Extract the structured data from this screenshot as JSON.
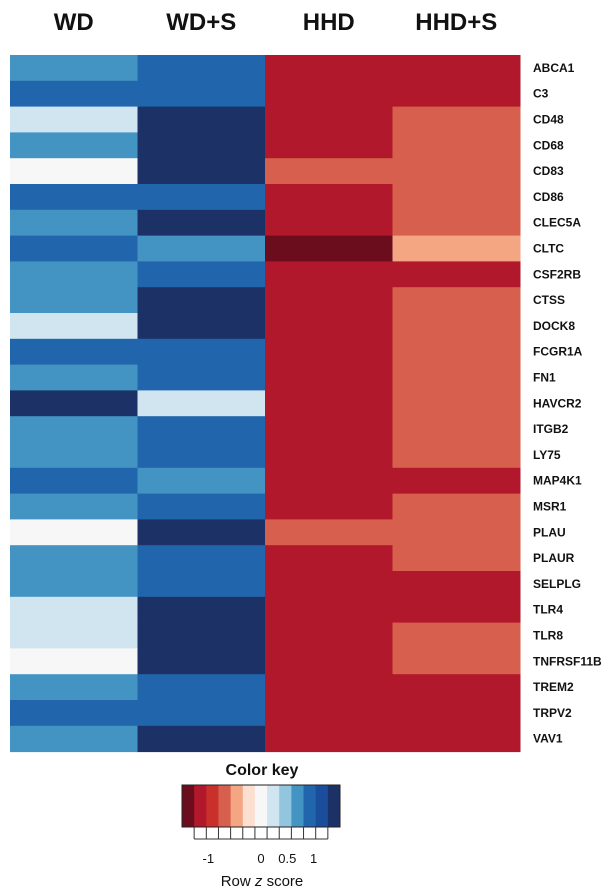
{
  "chart_data": {
    "type": "heatmap",
    "columns": [
      "WD",
      "WD+S",
      "HHD",
      "HHD+S"
    ],
    "rows": [
      "ABCA1",
      "C3",
      "CD48",
      "CD68",
      "CD83",
      "CD86",
      "CLEC5A",
      "CLTC",
      "CSF2RB",
      "CTSS",
      "DOCK8",
      "FCGR1A",
      "FN1",
      "HAVCR2",
      "ITGB2",
      "LY75",
      "MAP4K1",
      "MSR1",
      "PLAU",
      "PLAUR",
      "SELPLG",
      "TLR4",
      "TLR8",
      "TNFRSF11B",
      "TREM2",
      "TRPV2",
      "VAV1"
    ],
    "values": [
      [
        0.6,
        0.9,
        -1.1,
        -1.1
      ],
      [
        0.9,
        0.9,
        -1.1,
        -1.1
      ],
      [
        0.3,
        1.3,
        -1.1,
        -0.8
      ],
      [
        0.6,
        1.3,
        -1.1,
        -0.8
      ],
      [
        0.05,
        1.3,
        -0.8,
        -0.8
      ],
      [
        0.9,
        0.9,
        -1.1,
        -0.8
      ],
      [
        0.6,
        1.3,
        -1.1,
        -0.8
      ],
      [
        0.9,
        0.6,
        -1.5,
        -0.5
      ],
      [
        0.6,
        0.9,
        -1.1,
        -1.1
      ],
      [
        0.6,
        1.3,
        -1.1,
        -0.8
      ],
      [
        0.3,
        1.3,
        -1.1,
        -0.8
      ],
      [
        0.9,
        0.9,
        -1.1,
        -0.8
      ],
      [
        0.6,
        0.9,
        -1.1,
        -0.8
      ],
      [
        1.3,
        0.3,
        -1.1,
        -0.8
      ],
      [
        0.6,
        0.9,
        -1.1,
        -0.8
      ],
      [
        0.6,
        0.9,
        -1.1,
        -0.8
      ],
      [
        0.9,
        0.6,
        -1.1,
        -1.1
      ],
      [
        0.6,
        0.9,
        -1.1,
        -0.8
      ],
      [
        0.05,
        1.3,
        -0.8,
        -0.8
      ],
      [
        0.6,
        0.9,
        -1.1,
        -0.8
      ],
      [
        0.6,
        0.9,
        -1.1,
        -1.1
      ],
      [
        0.3,
        1.3,
        -1.1,
        -1.1
      ],
      [
        0.3,
        1.3,
        -1.1,
        -0.8
      ],
      [
        0.05,
        1.3,
        -1.1,
        -0.8
      ],
      [
        0.6,
        0.9,
        -1.1,
        -1.1
      ],
      [
        0.9,
        0.9,
        -1.1,
        -1.1
      ],
      [
        0.6,
        1.3,
        -1.1,
        -1.1
      ]
    ],
    "color_key": {
      "title": "Color key",
      "xlabel_prefix": "Row ",
      "xlabel_italic": "z",
      "xlabel_suffix": " score",
      "range": [
        -1.5,
        1.5
      ],
      "ticks": [
        -1,
        0,
        0.5,
        1
      ],
      "tick_labels": [
        "-1",
        "0",
        "0.5",
        "1"
      ],
      "colors": [
        "#6b0d1d",
        "#b2182b",
        "#c9302c",
        "#d6604d",
        "#f4a582",
        "#fbe0d2",
        "#f7f7f7",
        "#d1e5f0",
        "#92c5de",
        "#4393c3",
        "#2166ac",
        "#1a4e9c",
        "#1c3266"
      ]
    }
  }
}
